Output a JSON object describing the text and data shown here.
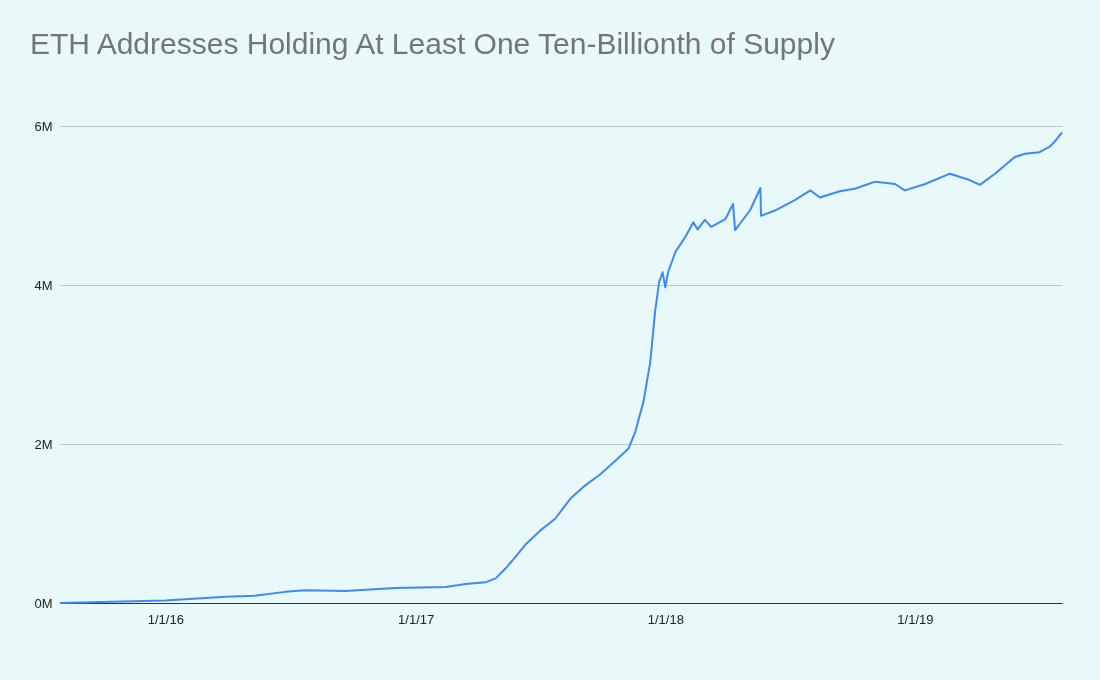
{
  "chart_data": {
    "type": "line",
    "title": "ETH Addresses Holding At Least One Ten-Billionth of Supply",
    "x": [
      "2015-07-31",
      "2016-01-01",
      "2016-03-29",
      "2016-05-11",
      "2016-06-24",
      "2016-07-23",
      "2016-09-20",
      "2016-12-02",
      "2017-02-14",
      "2017-03-15",
      "2017-04-13",
      "2017-04-28",
      "2017-05-12",
      "2017-05-27",
      "2017-06-11",
      "2017-07-02",
      "2017-07-24",
      "2017-08-15",
      "2017-09-06",
      "2017-09-28",
      "2017-10-20",
      "2017-11-08",
      "2017-11-18",
      "2017-11-30",
      "2017-12-10",
      "2017-12-17",
      "2017-12-23",
      "2017-12-28",
      "2018-01-01",
      "2018-01-05",
      "2018-01-16",
      "2018-01-30",
      "2018-02-11",
      "2018-02-17",
      "2018-02-28",
      "2018-03-09",
      "2018-03-30",
      "2018-04-10",
      "2018-04-13",
      "2018-05-05",
      "2018-05-20",
      "2018-05-21",
      "2018-06-11",
      "2018-07-10",
      "2018-08-01",
      "2018-08-15",
      "2018-09-13",
      "2018-10-05",
      "2018-11-04",
      "2018-12-03",
      "2018-12-17",
      "2019-01-16",
      "2019-02-21",
      "2019-03-22",
      "2019-04-06",
      "2019-04-28",
      "2019-05-27",
      "2019-06-11",
      "2019-07-02",
      "2019-07-17",
      "2019-07-24",
      "2019-08-04"
    ],
    "series": [
      {
        "color": "#3d8af7",
        "values": [
          0,
          0.03,
          0.08,
          0.09,
          0.14,
          0.16,
          0.15,
          0.19,
          0.2,
          0.24,
          0.26,
          0.31,
          0.43,
          0.58,
          0.74,
          0.91,
          1.06,
          1.31,
          1.48,
          1.62,
          1.79,
          1.94,
          2.15,
          2.53,
          3.03,
          3.66,
          4.04,
          4.16,
          3.97,
          4.16,
          4.42,
          4.6,
          4.79,
          4.7,
          4.82,
          4.73,
          4.83,
          5.02,
          4.69,
          4.94,
          5.22,
          4.87,
          4.94,
          5.07,
          5.19,
          5.1,
          5.18,
          5.21,
          5.3,
          5.27,
          5.19,
          5.27,
          5.4,
          5.32,
          5.26,
          5.4,
          5.61,
          5.65,
          5.67,
          5.74,
          5.8,
          5.92
        ]
      }
    ],
    "xlim": [
      "2015-07-31",
      "2019-08-04"
    ],
    "xticks": [
      {
        "value": "2016-01-01",
        "label": "1/1/16"
      },
      {
        "value": "2017-01-01",
        "label": "1/1/17"
      },
      {
        "value": "2018-01-01",
        "label": "1/1/18"
      },
      {
        "value": "2019-01-01",
        "label": "1/1/19"
      }
    ],
    "ylim": [
      0,
      6
    ],
    "yticks": [
      {
        "value": 0,
        "label": "0M"
      },
      {
        "value": 2,
        "label": "2M"
      },
      {
        "value": 4,
        "label": "4M"
      },
      {
        "value": 6,
        "label": "6M"
      }
    ],
    "grid": "y",
    "marker": "none",
    "line_style": "solid"
  }
}
